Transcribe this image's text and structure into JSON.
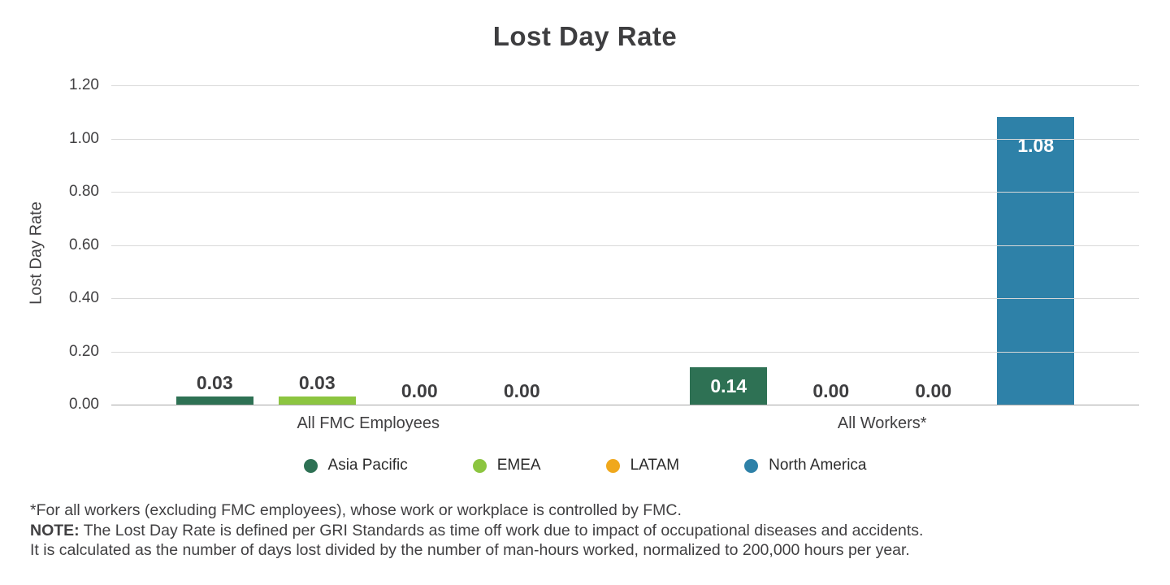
{
  "chart_data": {
    "type": "bar",
    "title": "Lost Day Rate",
    "ylabel": "Lost Day Rate",
    "categories": [
      "All FMC Employees",
      "All Workers*"
    ],
    "series": [
      {
        "name": "Asia Pacific",
        "color": "#2E7154",
        "values": [
          0.03,
          0.14
        ]
      },
      {
        "name": "EMEA",
        "color": "#8CC540",
        "values": [
          0.03,
          0.0
        ]
      },
      {
        "name": "LATAM",
        "color": "#F0A81C",
        "values": [
          0.0,
          0.0
        ]
      },
      {
        "name": "North America",
        "color": "#2E81A8",
        "values": [
          0.0,
          1.08
        ]
      }
    ],
    "value_labels": [
      [
        "0.03",
        "0.03",
        "0.00",
        "0.00"
      ],
      [
        "0.14",
        "0.00",
        "0.00",
        "1.08"
      ]
    ],
    "ylim": [
      0,
      1.2
    ],
    "yticks": [
      "1.20",
      "1.00",
      "0.80",
      "0.60",
      "0.40",
      "0.20",
      "0.00"
    ],
    "grid": true,
    "legend_position": "bottom"
  },
  "footnotes": {
    "line1": "*For all workers (excluding FMC employees), whose work or workplace is controlled by FMC.",
    "note_label": "NOTE:",
    "line2": " The Lost Day Rate is defined per GRI Standards as time off work due to impact of occupational diseases and accidents.",
    "line3": "It is calculated as the number of days lost divided by the number of man-hours worked, normalized to 200,000 hours per year."
  },
  "colors": {
    "grid": "#d9d9d9",
    "axis": "#a6a6a6",
    "text": "#414042"
  }
}
